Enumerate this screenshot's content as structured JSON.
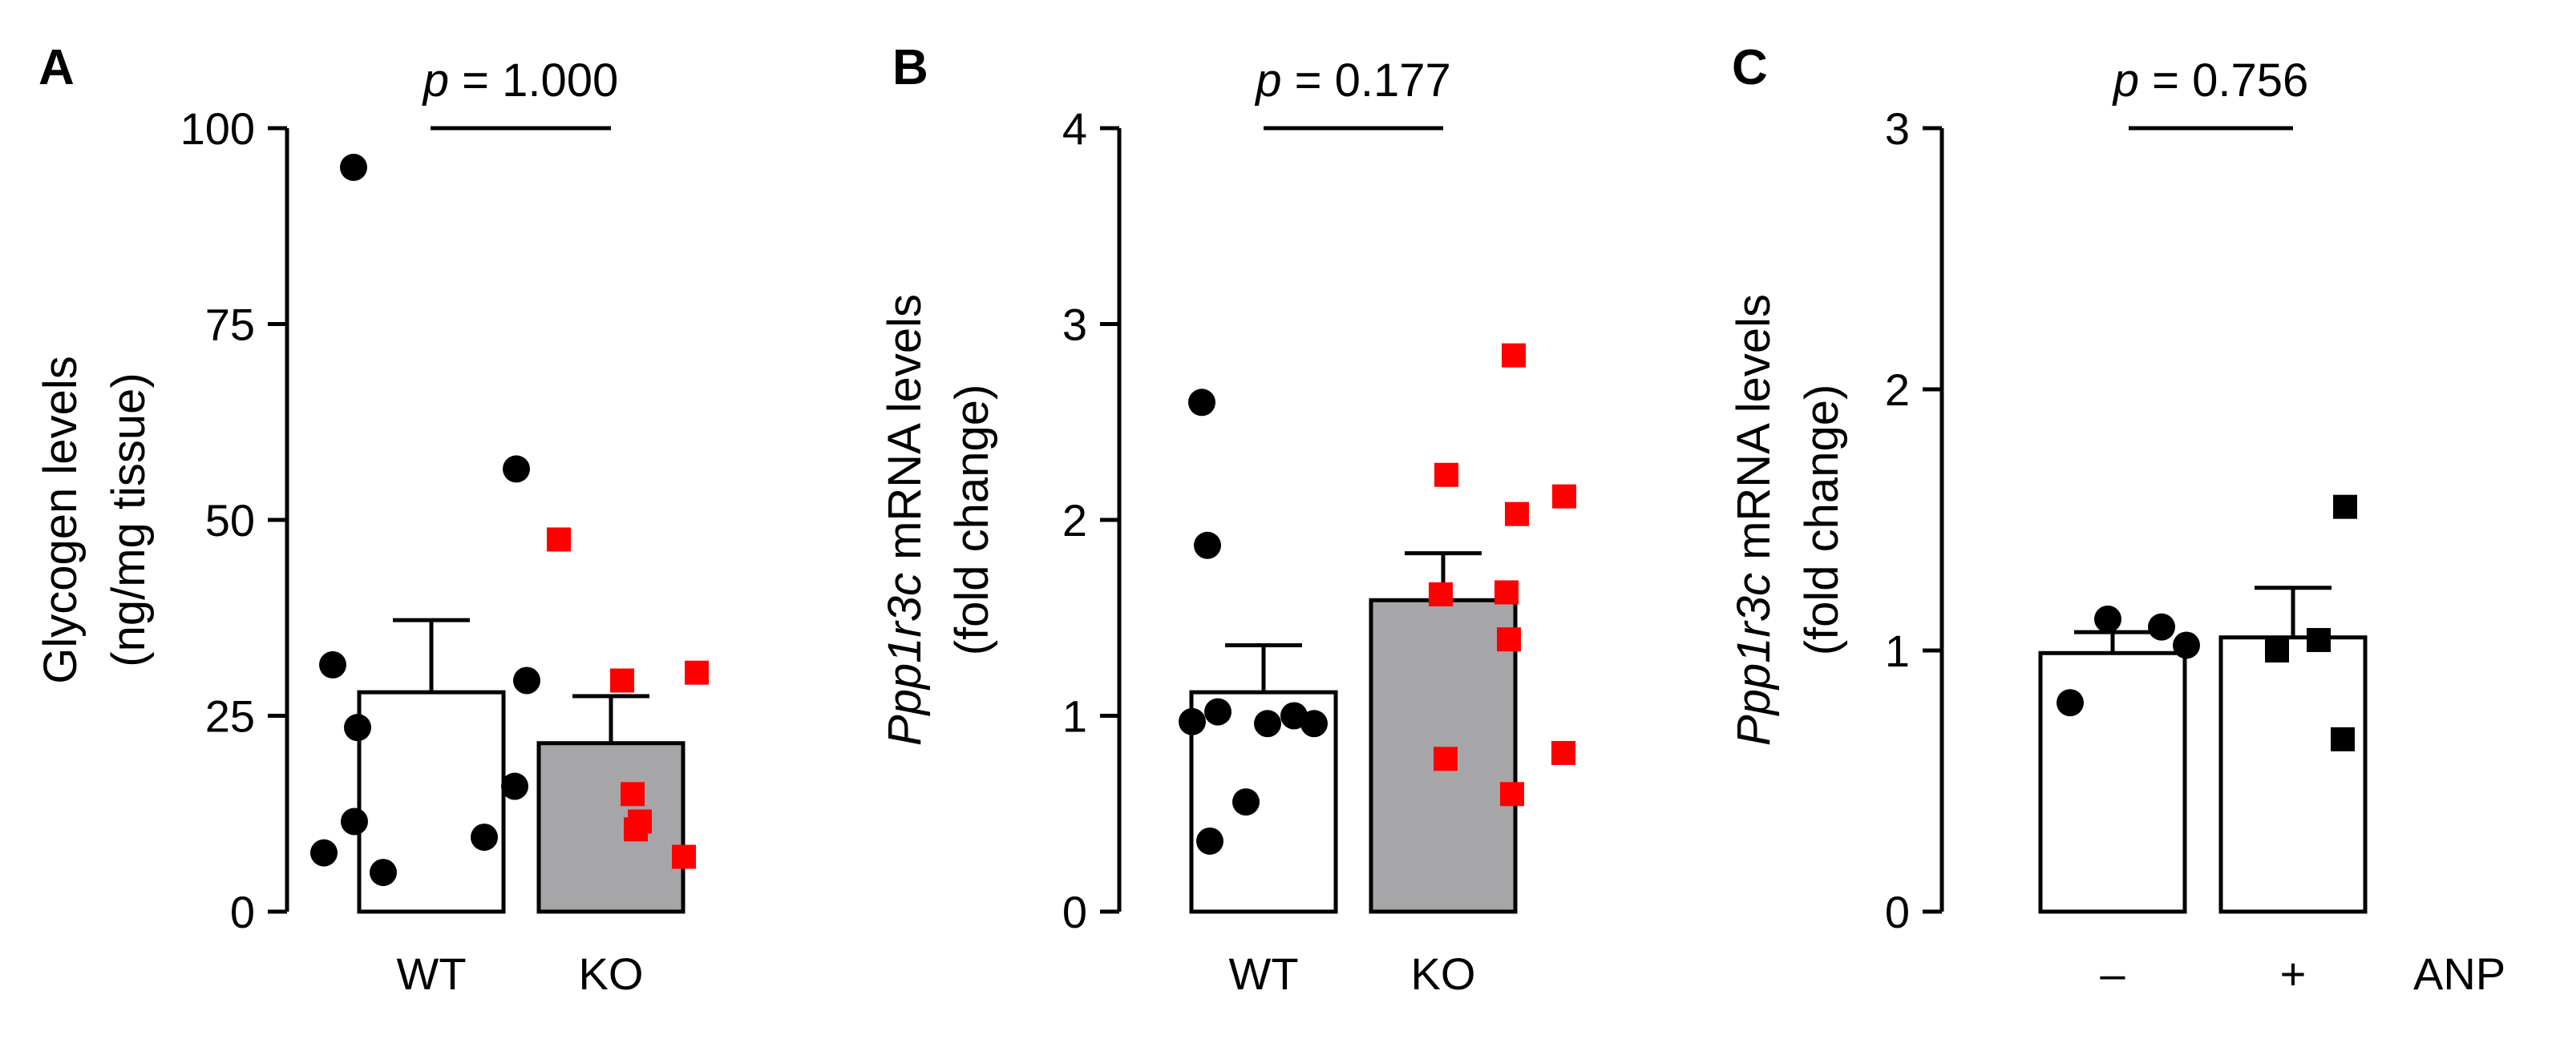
{
  "chart_data": [
    {
      "type": "bar",
      "panel": "A",
      "categories": [
        "WT",
        "KO"
      ],
      "means": [
        28,
        21.5
      ],
      "sem": [
        9.2,
        6
      ],
      "bar_colors": [
        "#ffffff",
        "#a6a6a8"
      ],
      "points": [
        [
          95,
          56.5,
          31.5,
          29.5,
          23.5,
          16,
          11.5,
          9.5,
          7.5,
          5
        ],
        [
          47.5,
          30.5,
          29.5,
          15,
          11.5,
          10.5,
          7
        ]
      ],
      "point_colors": [
        "#000000",
        "#ff0000"
      ],
      "point_shapes": [
        "circle",
        "square"
      ],
      "ylim": [
        0,
        100
      ],
      "yticks": [
        0,
        25,
        50,
        75,
        100
      ],
      "ylabel": [
        "Glycogen levels",
        "(ng/mg tissue)"
      ],
      "p_label": "p",
      "p_value": " = 1.000",
      "extra_xlabel": ""
    },
    {
      "type": "bar",
      "panel": "B",
      "categories": [
        "WT",
        "KO"
      ],
      "means": [
        1.12,
        1.59
      ],
      "sem": [
        0.24,
        0.24
      ],
      "bar_colors": [
        "#ffffff",
        "#a6a6a8"
      ],
      "points": [
        [
          2.6,
          1.87,
          1.02,
          1.0,
          0.97,
          0.96,
          0.96,
          0.56,
          0.36
        ],
        [
          2.84,
          2.23,
          2.12,
          2.03,
          1.63,
          1.62,
          1.39,
          0.81,
          0.78,
          0.6
        ]
      ],
      "point_colors": [
        "#000000",
        "#ff0000"
      ],
      "point_shapes": [
        "circle",
        "square"
      ],
      "ylim": [
        0,
        4
      ],
      "yticks": [
        0,
        1,
        2,
        3,
        4
      ],
      "ylabel_italic": "Ppp1r3c",
      "ylabel": [
        " mRNA levels",
        "(fold change)"
      ],
      "p_label": "p",
      "p_value": " = 0.177",
      "extra_xlabel": ""
    },
    {
      "type": "bar",
      "panel": "C",
      "categories": [
        "–",
        "+"
      ],
      "means": [
        0.99,
        1.05
      ],
      "sem": [
        0.08,
        0.19
      ],
      "bar_colors": [
        "#ffffff",
        "#ffffff"
      ],
      "points": [
        [
          1.12,
          1.09,
          1.02,
          0.8
        ],
        [
          1.55,
          1.04,
          1.0,
          0.66
        ]
      ],
      "point_colors": [
        "#000000",
        "#000000"
      ],
      "point_shapes": [
        "circle",
        "square"
      ],
      "ylim": [
        0,
        3
      ],
      "yticks": [
        0,
        1,
        2,
        3
      ],
      "ylabel_italic": "Ppp1r3c",
      "ylabel": [
        " mRNA levels",
        "(fold change)"
      ],
      "p_label": "p",
      "p_value": " = 0.756",
      "extra_xlabel": "ANP"
    }
  ]
}
